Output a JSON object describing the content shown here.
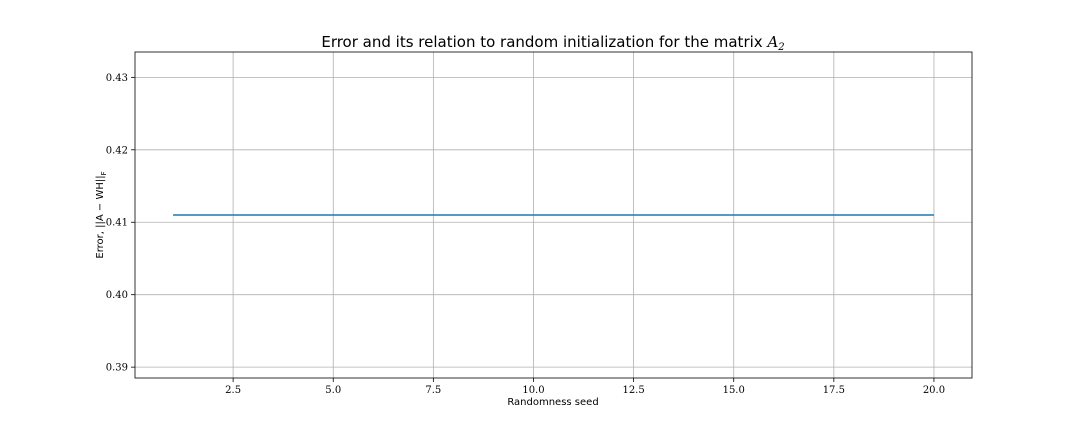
{
  "chart_data": {
    "type": "line",
    "title": "Error and its relation to random initialization for the matrix",
    "title_math": "A",
    "title_math_sub": "2",
    "xlabel": "Randomness seed",
    "ylabel": "Error, ||A − WH||",
    "ylabel_sub": "F",
    "xlim": [
      0.05,
      20.95
    ],
    "ylim": [
      0.3885,
      0.4335
    ],
    "xticks": [
      2.5,
      5.0,
      7.5,
      10.0,
      12.5,
      15.0,
      17.5,
      20.0
    ],
    "xtick_labels": [
      "2.5",
      "5.0",
      "7.5",
      "10.0",
      "12.5",
      "15.0",
      "17.5",
      "20.0"
    ],
    "yticks": [
      0.39,
      0.4,
      0.41,
      0.42,
      0.43
    ],
    "ytick_labels": [
      "0.39",
      "0.40",
      "0.41",
      "0.42",
      "0.43"
    ],
    "grid": true,
    "line_color": "#1f77b4",
    "series": [
      {
        "x": [
          1,
          2,
          3,
          4,
          5,
          6,
          7,
          8,
          9,
          10,
          11,
          12,
          13,
          14,
          15,
          16,
          17,
          18,
          19,
          20
        ],
        "y": [
          0.411,
          0.411,
          0.411,
          0.411,
          0.411,
          0.411,
          0.411,
          0.411,
          0.411,
          0.411,
          0.411,
          0.411,
          0.411,
          0.411,
          0.411,
          0.411,
          0.411,
          0.411,
          0.411,
          0.411
        ]
      }
    ]
  }
}
